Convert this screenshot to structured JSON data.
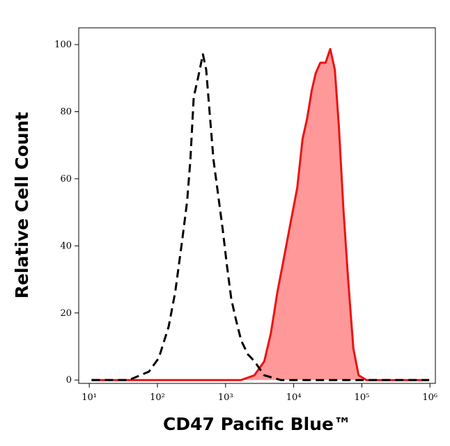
{
  "chart_data": {
    "type": "histogram-overlay",
    "x_label": "CD47 Pacific Blue™",
    "y_label": "Relative Cell Count",
    "xscale": "log",
    "xlim": [
      7,
      1200000
    ],
    "ylim": [
      -1,
      105
    ],
    "xticks": [
      {
        "value": 10,
        "label": "10¹"
      },
      {
        "value": 100,
        "label": "10²"
      },
      {
        "value": 1000,
        "label": "10³"
      },
      {
        "value": 10000,
        "label": "10⁴"
      },
      {
        "value": 100000,
        "label": "10⁵"
      },
      {
        "value": 1000000,
        "label": "10⁶"
      }
    ],
    "yticks": [
      0,
      20,
      40,
      60,
      80,
      100
    ],
    "series": [
      {
        "color": "#000000",
        "dashed": true,
        "filled": false,
        "x": [
          10.8,
          38,
          75,
          105,
          146,
          183,
          228,
          273,
          305,
          341,
          398,
          465,
          520,
          582,
          665,
          778,
          908,
          1040,
          1213,
          1419,
          1695,
          2118,
          2648,
          3700,
          6460,
          19700,
          973000
        ],
        "values": [
          0,
          0,
          2.5,
          6.6,
          15.9,
          26.3,
          40.8,
          53.2,
          65.6,
          84.3,
          90.5,
          97.1,
          92.5,
          80.1,
          65.6,
          55.3,
          44.9,
          34.6,
          24.2,
          18,
          11.8,
          7.7,
          5.6,
          1.4,
          0,
          0,
          0
        ]
      },
      {
        "color": "#ee1111",
        "fill": "#ff9999",
        "dashed": false,
        "filled": true,
        "x": [
          10.8,
          1695,
          2648,
          3700,
          4620,
          5780,
          7230,
          9020,
          11270,
          13490,
          15740,
          18410,
          21040,
          24600,
          29400,
          34400,
          40200,
          45900,
          53700,
          62800,
          75000,
          89700,
          117000,
          973000
        ],
        "values": [
          0,
          0,
          1.4,
          5.6,
          13.9,
          26.3,
          36.6,
          47,
          57.3,
          71.8,
          78,
          86.3,
          91.5,
          94.6,
          94.6,
          98.7,
          92.5,
          75.8,
          50.9,
          30.2,
          9.5,
          1.4,
          0,
          0
        ]
      }
    ]
  }
}
